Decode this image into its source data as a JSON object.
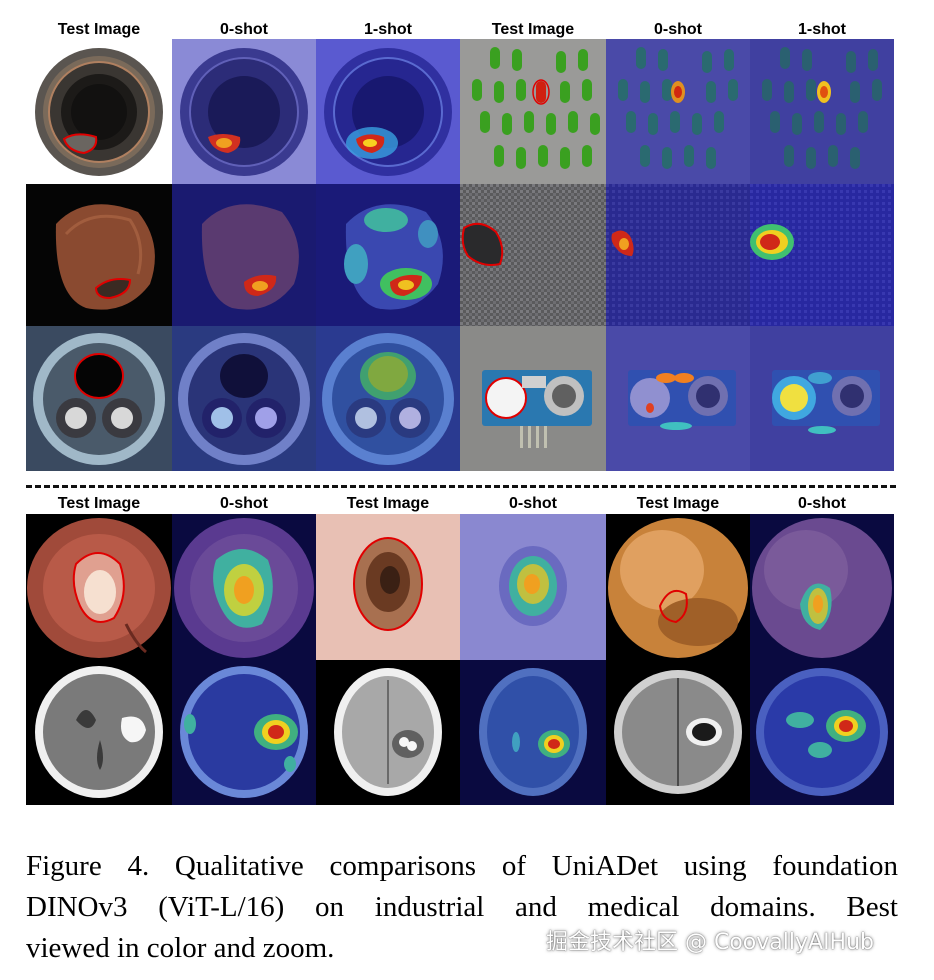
{
  "top_headers": [
    "Test Image",
    "0-shot",
    "1-shot",
    "Test Image",
    "0-shot",
    "1-shot"
  ],
  "bottom_headers": [
    "Test Image",
    "0-shot",
    "Test Image",
    "0-shot",
    "Test Image",
    "0-shot"
  ],
  "caption": {
    "line1": "Figure 4.  Qualitative comparisons of UniADet using foundation",
    "line2": "DINOv3  (ViT-L/16)  on  industrial  and  medical  domains.   Best",
    "line3": "viewed in color and zoom."
  },
  "watermark": "掘金技术社区 @ CoovallyAIHub",
  "samples": {
    "industrial": [
      "bottle",
      "pills",
      "hazelnut",
      "carpet",
      "cable",
      "pcb-sensor"
    ],
    "medical": [
      "colon-polyp",
      "skin-lesion",
      "endoscopy",
      "brain-ct",
      "brain-mri",
      "brain-mri-2"
    ]
  }
}
